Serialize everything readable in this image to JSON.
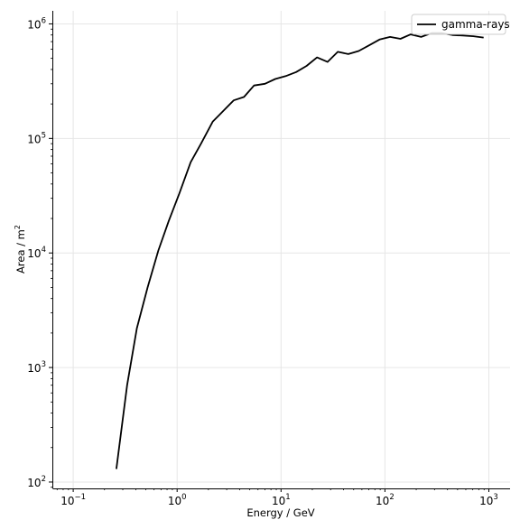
{
  "chart_data": {
    "type": "line",
    "title": "",
    "xlabel": "Energy / GeV",
    "ylabel_base": "Area / m",
    "ylabel_exp": "2",
    "xscale": "log",
    "yscale": "log",
    "xlim": [
      0.063,
      1600
    ],
    "ylim": [
      88,
      1300000
    ],
    "grid": true,
    "legend_position": "top-right",
    "x_ticks": [
      {
        "base": "10",
        "exp": "−1",
        "value": 0.1
      },
      {
        "base": "10",
        "exp": "0",
        "value": 1
      },
      {
        "base": "10",
        "exp": "1",
        "value": 10
      },
      {
        "base": "10",
        "exp": "2",
        "value": 100
      },
      {
        "base": "10",
        "exp": "3",
        "value": 1000
      }
    ],
    "y_ticks": [
      {
        "base": "10",
        "exp": "2",
        "value": 100
      },
      {
        "base": "10",
        "exp": "3",
        "value": 1000
      },
      {
        "base": "10",
        "exp": "4",
        "value": 10000
      },
      {
        "base": "10",
        "exp": "5",
        "value": 100000
      },
      {
        "base": "10",
        "exp": "6",
        "value": 1000000
      }
    ],
    "series": [
      {
        "name": "gamma-rays",
        "color": "#000000",
        "x": [
          0.26,
          0.33,
          0.41,
          0.52,
          0.66,
          0.83,
          1.05,
          1.35,
          1.7,
          2.2,
          2.8,
          3.5,
          4.4,
          5.5,
          7.0,
          8.8,
          11.1,
          14.0,
          17.6,
          22.2,
          28.0,
          35.2,
          44.4,
          55.9,
          70.4,
          88.7,
          112,
          141,
          177,
          223,
          281,
          354,
          446,
          562,
          708,
          891
        ],
        "y": [
          130,
          700,
          2200,
          5000,
          10500,
          19000,
          33000,
          62000,
          90000,
          140000,
          175000,
          215000,
          230000,
          290000,
          300000,
          330000,
          350000,
          380000,
          430000,
          510000,
          465000,
          570000,
          545000,
          580000,
          650000,
          730000,
          770000,
          740000,
          810000,
          770000,
          830000,
          830000,
          800000,
          790000,
          780000,
          760000
        ]
      }
    ]
  }
}
